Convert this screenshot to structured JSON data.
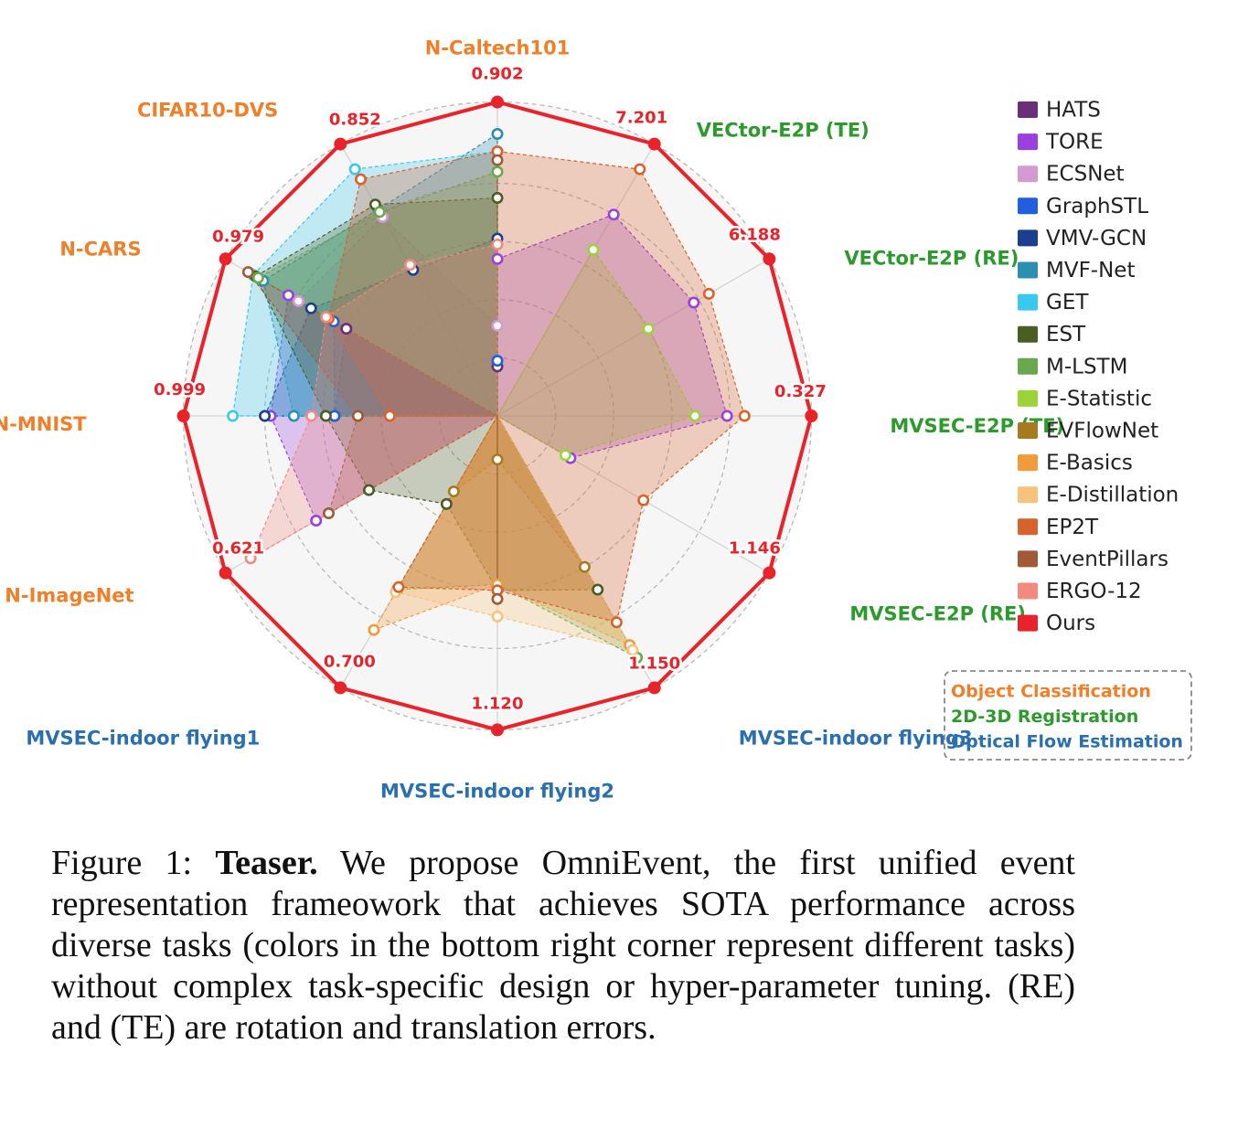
{
  "chart_data": {
    "type": "radar",
    "axes": [
      {
        "label": "N-Caltech101",
        "task": "Object Classification",
        "best": "0.902"
      },
      {
        "label": "VECtor-E2P (TE)",
        "task": "2D-3D Registration",
        "best": "7.201"
      },
      {
        "label": "VECtor-E2P (RE)",
        "task": "2D-3D Registration",
        "best": "6.188"
      },
      {
        "label": "MVSEC-E2P (TE)",
        "task": "2D-3D Registration",
        "best": "0.327"
      },
      {
        "label": "MVSEC-E2P (RE)",
        "task": "2D-3D Registration",
        "best": "1.146"
      },
      {
        "label": "MVSEC-indoor flying3",
        "task": "Optical Flow Estimation",
        "best": "1.150"
      },
      {
        "label": "MVSEC-indoor flying2",
        "task": "Optical Flow Estimation",
        "best": "1.120"
      },
      {
        "label": "MVSEC-indoor flying1",
        "task": "Optical Flow Estimation",
        "best": "0.700"
      },
      {
        "label": "N-ImageNet",
        "task": "Object Classification",
        "best": "0.621"
      },
      {
        "label": "N-MNIST",
        "task": "Object Classification",
        "best": "0.999"
      },
      {
        "label": "N-CARS",
        "task": "Object Classification",
        "best": "0.979"
      },
      {
        "label": "CIFAR10-DVS",
        "task": "Object Classification",
        "best": "0.852"
      }
    ],
    "rings": 5,
    "series": [
      {
        "name": "HATS",
        "color": "#6a2f7a",
        "values": [
          0.17,
          0,
          0,
          0,
          0,
          0,
          0,
          0,
          0,
          0.56,
          0.6,
          0
        ]
      },
      {
        "name": "TORE",
        "color": "#9b3fe0",
        "values": [
          0.54,
          0.8,
          0.78,
          0.79,
          0.29,
          0,
          0,
          0,
          0.72,
          0.78,
          0.83,
          0
        ]
      },
      {
        "name": "ECSNet",
        "color": "#d39bd1",
        "values": [
          0.31,
          0,
          0,
          0,
          0,
          0,
          0,
          0,
          0,
          0,
          0.79,
          0.79
        ]
      },
      {
        "name": "GraphSTL",
        "color": "#1f5fe0",
        "values": [
          0.19,
          0,
          0,
          0,
          0,
          0,
          0,
          0,
          0,
          0.56,
          0.65,
          0
        ]
      },
      {
        "name": "VMV-GCN",
        "color": "#1b3f8f",
        "values": [
          0.61,
          0,
          0,
          0,
          0,
          0,
          0,
          0,
          0,
          0.8,
          0.74,
          0.58
        ]
      },
      {
        "name": "MVF-Net",
        "color": "#2a8fb0",
        "values": [
          0.97,
          0,
          0,
          0,
          0,
          0,
          0,
          0,
          0,
          0.7,
          0.93,
          0.82
        ]
      },
      {
        "name": "GET",
        "color": "#38c8f0",
        "values": [
          0.91,
          0,
          0,
          0,
          0,
          0,
          0,
          0,
          0,
          0.91,
          0.97,
          0.98
        ]
      },
      {
        "name": "EST",
        "color": "#4a5e23",
        "values": [
          0.75,
          0,
          0,
          0,
          0,
          0.69,
          0.6,
          0.35,
          0.51,
          0.59,
          0.96,
          0.84
        ]
      },
      {
        "name": "M-LSTM",
        "color": "#6aa84f",
        "values": [
          0.84,
          0,
          0,
          0,
          0,
          0.96,
          0.58,
          0.69,
          0,
          0,
          0.95,
          0.81
        ]
      },
      {
        "name": "E-Statistic",
        "color": "#9ad43a",
        "values": [
          0,
          0.66,
          0.6,
          0.68,
          0.27,
          0,
          0,
          0,
          0,
          0,
          0,
          0
        ]
      },
      {
        "name": "EVFlowNet",
        "color": "#a87a1f",
        "values": [
          0,
          0,
          0,
          0,
          0,
          0.6,
          0.15,
          0.3,
          0,
          0.48,
          0,
          0
        ]
      },
      {
        "name": "E-Basics",
        "color": "#f39a3a",
        "values": [
          0,
          0,
          0,
          0,
          0,
          0.91,
          0.58,
          0.85,
          0,
          0,
          0,
          0
        ]
      },
      {
        "name": "E-Distillation",
        "color": "#f7c27a",
        "values": [
          0,
          0,
          0,
          0,
          0,
          0.93,
          0.69,
          0.7,
          0,
          0,
          0,
          0
        ]
      },
      {
        "name": "EP2T",
        "color": "#d8622c",
        "values": [
          0.91,
          0.98,
          0.84,
          0.85,
          0.58,
          0.82,
          0.6,
          0.68,
          0,
          0.37,
          0.67,
          0.94
        ]
      },
      {
        "name": "EventPillars",
        "color": "#a05a35",
        "values": [
          0.88,
          0,
          0,
          0,
          0,
          0,
          0.63,
          0,
          0.67,
          0.48,
          0.99,
          0
        ]
      },
      {
        "name": "ERGO-12",
        "color": "#f28a7e",
        "values": [
          0.59,
          0,
          0,
          0,
          0,
          0,
          0,
          0,
          0.98,
          0.64,
          0.68,
          0.6
        ]
      },
      {
        "name": "Ours",
        "color": "#e8232a",
        "values": [
          1,
          1,
          1,
          1,
          1,
          1,
          1,
          1,
          1,
          1,
          1,
          1
        ]
      }
    ],
    "task_legend": [
      {
        "label": "Object Classification",
        "color": "#f07f2a"
      },
      {
        "label": "2D-3D Registration",
        "color": "#2c9a2c"
      },
      {
        "label": "Optical Flow Estimation",
        "color": "#2a6fb0"
      }
    ]
  },
  "caption": {
    "prefix": "Figure 1: ",
    "bold": "Teaser.",
    "text": " We propose OmniEvent, the first unified event representation frameowork that achieves SOTA performance across diverse tasks (colors in the bottom right corner represent different tasks) without complex task-specific design or hyper-parameter tuning. (RE) and (TE) are rotation and translation errors."
  }
}
